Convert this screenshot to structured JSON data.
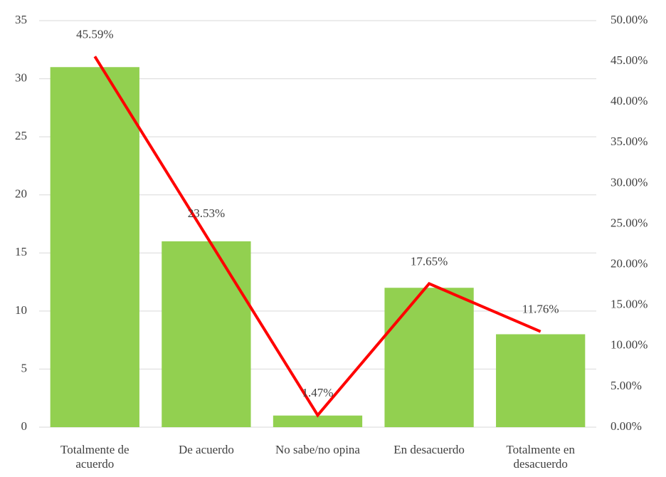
{
  "chart_data": {
    "type": "bar_line",
    "categories": [
      "Totalmente de acuerdo",
      "De acuerdo",
      "No sabe/no opina",
      "En desacuerdo",
      "Totalmente en desacuerdo"
    ],
    "series": [
      {
        "type": "bar",
        "color": "#92d050",
        "values": [
          31,
          16,
          1,
          12,
          8
        ]
      },
      {
        "type": "line",
        "axis": "y2",
        "color": "#ff0000",
        "values": [
          45.59,
          23.53,
          1.47,
          17.65,
          11.76
        ],
        "value_labels": [
          "45.59%",
          "23.53%",
          "1.47%",
          "17.65%",
          "11.76%"
        ]
      }
    ],
    "ylim": [
      0,
      35
    ],
    "yticks": [
      0,
      5,
      10,
      15,
      20,
      25,
      30,
      35
    ],
    "y2lim": [
      0,
      50
    ],
    "y2ticks": [
      {
        "value": 0,
        "label": "0.00%"
      },
      {
        "value": 5,
        "label": "5.00%"
      },
      {
        "value": 10,
        "label": "10.00%"
      },
      {
        "value": 15,
        "label": "15.00%"
      },
      {
        "value": 20,
        "label": "20.00%"
      },
      {
        "value": 25,
        "label": "25.00%"
      },
      {
        "value": 30,
        "label": "30.00%"
      },
      {
        "value": 35,
        "label": "35.00%"
      },
      {
        "value": 40,
        "label": "40.00%"
      },
      {
        "value": 45,
        "label": "45.00%"
      },
      {
        "value": 50,
        "label": "50.00%"
      }
    ],
    "grid": true
  }
}
